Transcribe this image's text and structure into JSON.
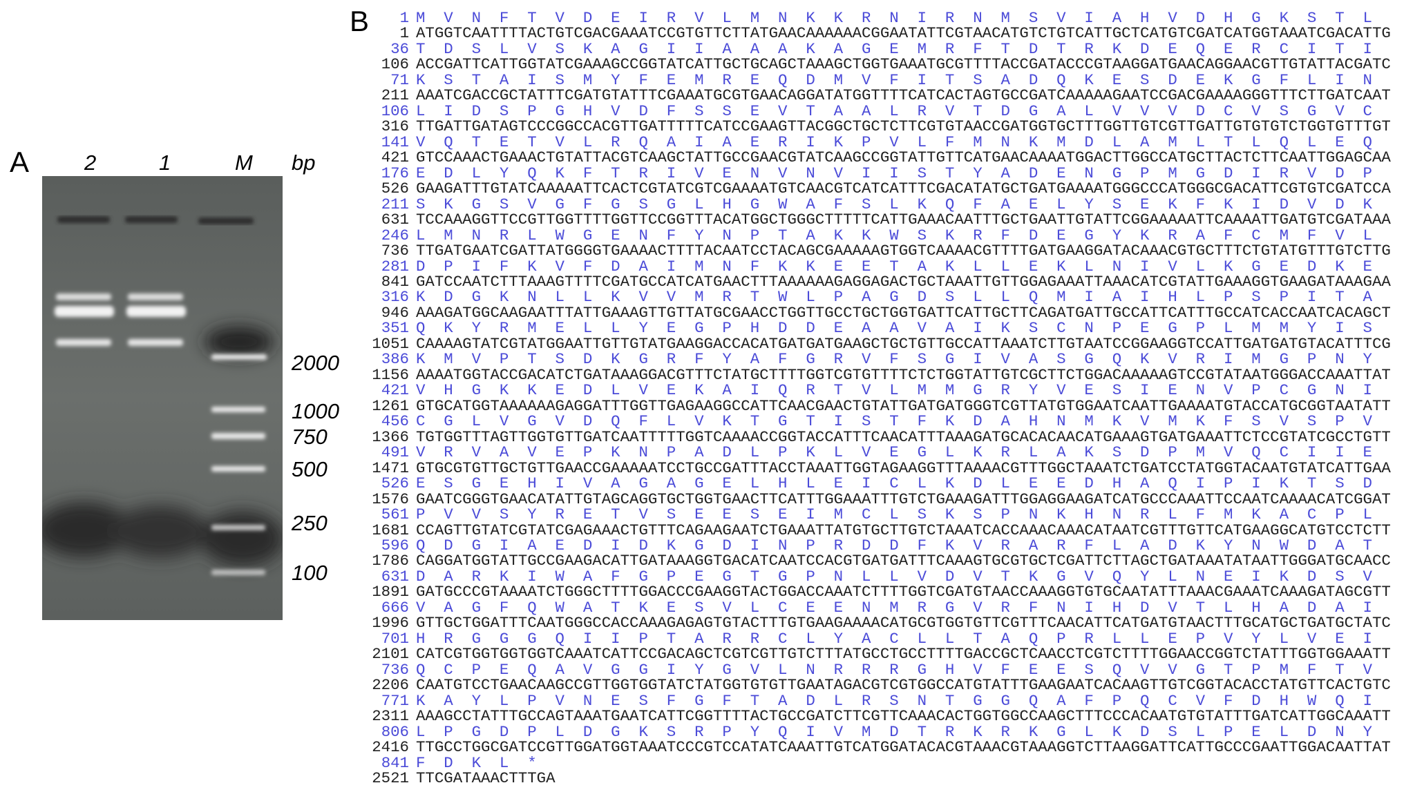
{
  "panel_a": {
    "label": "A",
    "lanes": [
      "2",
      "1",
      "M"
    ],
    "unit": "bp",
    "marker_sizes": [
      "2000",
      "1000",
      "750",
      "500",
      "250",
      "100"
    ]
  },
  "panel_b": {
    "label": "B",
    "rows": [
      {
        "aa_start": 1,
        "protein": "MVNFTVDEIRVLMNKKRNIRNMSVIAHVDHGKSTL",
        "nt_start": 1,
        "dna": "ATGGTCAATTTTACTGTCGACGAAATCCGTGTTCTTATGAACAAAAAACGGAATATTCGTAACATGTCTGTCATTGCTCATGTCGATCATGGTAAATCGACATTG"
      },
      {
        "aa_start": 36,
        "protein": "TDSLVSKAGIIAAAKAGEMRFTDTRKDEQERCITI",
        "nt_start": 106,
        "dna": "ACCGATTCATTGGTATCGAAAGCCGGTATCATTGCTGCAGCTAAAGCTGGTGAAATGCGTTTTACCGATACCCGTAAGGATGAACAGGAACGTTGTATTACGATC"
      },
      {
        "aa_start": 71,
        "protein": "KSTAISMYFEMREQDMVFITSADQKESDEKGFLIN",
        "nt_start": 211,
        "dna": "AAATCGACCGCTATTTCGATGTATTTCGAAATGCGTGAACAGGATATGGTTTTCATCACTAGTGCCGATCAAAAAGAATCCGACGAAAAGGGTTTCTTGATCAAT"
      },
      {
        "aa_start": 106,
        "protein": "LIDSPGHVDFSSEVTAALRVTDGALVVVDCVSGVC",
        "nt_start": 316,
        "dna": "TTGATTGATAGTCCCGGCCACGTTGATTTTTCATCCGAAGTTACGGCTGCTCTTCGTGTAACCGATGGTGCTTTGGTTGTCGTTGATTGTGTGTCTGGTGTTTGT"
      },
      {
        "aa_start": 141,
        "protein": "VQTETVLRQAIAERIKPVLFMNKMDLAMLTLQLEQ",
        "nt_start": 421,
        "dna": "GTCCAAACTGAAACTGTATTACGTCAAGCTATTGCCGAACGTATCAAGCCGGTATTGTTCATGAACAAAATGGACTTGGCCATGCTTACTCTTCAATTGGAGCAA"
      },
      {
        "aa_start": 176,
        "protein": "EDLYQKFTRIVENVNVIISTYADENGPMGDIRVDP",
        "nt_start": 526,
        "dna": "GAAGATTTGTATCAAAAATTCACTCGTATCGTCGAAAATGTCAACGTCATCATTTCGACATATGCTGATGAAAATGGGCCCATGGGCGACATTCGTGTCGATCCA"
      },
      {
        "aa_start": 211,
        "protein": "SKGSVGFGSGLHGWAFSLKQFAELYSEKFKIDVDK",
        "nt_start": 631,
        "dna": "TCCAAAGGTTCCGTTGGTTTTGGTTCCGGTTTACATGGCTGGGCTTTTTCATTGAAACAATTTGCTGAATTGTATTCGGAAAAATTCAAAATTGATGTCGATAAA"
      },
      {
        "aa_start": 246,
        "protein": "LMNRLWGENFYNPTAKKWSKRFDEGYKRAFCMFVL",
        "nt_start": 736,
        "dna": "TTGATGAATCGATTATGGGGTGAAAACTTTTACAATCCTACAGCGAAAAAGTGGTCAAAACGTTTTGATGAAGGATACAAACGTGCTTTCTGTATGTTTGTCTTG"
      },
      {
        "aa_start": 281,
        "protein": "DPIFKVFDAIMNFKKEETAKLLEKLNIVLKGEDKE",
        "nt_start": 841,
        "dna": "GATCCAATCTTTAAAGTTTTCGATGCCATCATGAACTTTAAAAAAGAGGAGACTGCTAAATTGTTGGAGAAATTAAACATCGTATTGAAAGGTGAAGATAAAGAA"
      },
      {
        "aa_start": 316,
        "protein": "KDGKNLLKVVMRTWLPAGDSLLQMIAIHLPSPITA",
        "nt_start": 946,
        "dna": "AAAGATGGCAAGAATTTATTGAAAGTTGTTATGCGAACCTGGTTGCCTGCTGGTGATTCATTGCTTCAGATGATTGCCATTCATTTGCCATCACCAATCACAGCT"
      },
      {
        "aa_start": 351,
        "protein": "QKYRMELLYEGPHDDEAAVAIKSCNPEGPLMMYIS",
        "nt_start": 1051,
        "dna": "CAAAAGTATCGTATGGAATTGTTGTATGAAGGACCACATGATGATGAAGCTGCTGTTGCCATTAAATCTTGTAATCCGGAAGGTCCATTGATGATGTACATTTCG"
      },
      {
        "aa_start": 386,
        "protein": "KMVPTSDKGRFYAFGRVFSGIVASGQKVRIMGPNY",
        "nt_start": 1156,
        "dna": "AAAATGGTACCGACATCTGATAAAGGACGTTTCTATGCTTTTGGTCGTGTTTTCTCTGGTATTGTCGCTTCTGGACAAAAAGTCCGTATAATGGGACCAAATTAT"
      },
      {
        "aa_start": 421,
        "protein": "VHGKKEDLVEKAIQRTVLMMGRYVESIENVPCGNI",
        "nt_start": 1261,
        "dna": "GTGCATGGTAAAAAAGAGGATTTGGTTGAGAAGGCCATTCAACGAACTGTATTGATGATGGGTCGTTATGTGGAATCAATTGAAAATGTACCATGCGGTAATATT"
      },
      {
        "aa_start": 456,
        "protein": "CGLVGVDQFLVKTGTISTFKDAHNMKVMKFSVSPV",
        "nt_start": 1366,
        "dna": "TGTGGTTTAGTTGGTGTTGATCAATTTTTGGTCAAAACCGGTACCATTTCAACATTTAAAGATGCACACAACATGAAAGTGATGAAATTCTCCGTATCGCCTGTT"
      },
      {
        "aa_start": 491,
        "protein": "VRVAVEPKNPADLPKLVEGLKRLAKSDPMVQCIIE",
        "nt_start": 1471,
        "dna": "GTGCGTGTTGCTGTTGAACCGAAAAATCCTGCCGATTTACCTAAATTGGTAGAAGGTTTAAAACGTTTGGCTAAATCTGATCCTATGGTACAATGTATCATTGAA"
      },
      {
        "aa_start": 526,
        "protein": "ESGEHIVAGAGELHLEICLKDLEEDHAQIPIKTSD",
        "nt_start": 1576,
        "dna": "GAATCGGGTGAACATATTGTAGCAGGTGCTGGTGAACTTCATTTGGAAATTTGTCTGAAAGATTTGGAGGAAGATCATGCCCAAATTCCAATCAAAACATCGGAT"
      },
      {
        "aa_start": 561,
        "protein": "PVVSYRETVSEESEIMCLSKSPNKHNRLFMKACPL",
        "nt_start": 1681,
        "dna": "CCAGTTGTATCGTATCGAGAAACTGTTTCAGAAGAATCTGAAATTATGTGCTTGTCTAAATCACCAAACAAACATAATCGTTTGTTCATGAAGGCATGTCCTCTT"
      },
      {
        "aa_start": 596,
        "protein": "QDGIAEDIDKGDINPRDDFKVRARFLADKYNWDAT",
        "nt_start": 1786,
        "dna": "CAGGATGGTATTGCCGAAGACATTGATAAAGGTGACATCAATCCACGTGATGATTTCAAAGTGCGTGCTCGATTCTTAGCTGATAAATATAATTGGGATGCAACC"
      },
      {
        "aa_start": 631,
        "protein": "DARKIWAFGPEGTGPNLLVDVTKGVQYLNEIKDSV",
        "nt_start": 1891,
        "dna": "GATGCCCGTAAAATCTGGGCTTTTGGACCCGAAGGTACTGGACCAAATCTTTTGGTCGATGTAACCAAAGGTGTGCAATATTTAAACGAAATCAAAGATAGCGTT"
      },
      {
        "aa_start": 666,
        "protein": "VAGFQWATKESVLCEENMRGVRFNIHDVTLHADAI",
        "nt_start": 1996,
        "dna": "GTTGCTGGATTTCAATGGGCCACCAAAGAGAGTGTACTTTGTGAAGAAAACATGCGTGGTGTTCGTTTCAACATTCATGATGTAACTTTGCATGCTGATGCTATC"
      },
      {
        "aa_start": 701,
        "protein": "HRGGGQIIPTARRCLYACLLTAQPRLLEPVYLVEI",
        "nt_start": 2101,
        "dna": "CATCGTGGTGGTGGTCAAATCATTCCGACAGCTCGTCGTTGTCTTTATGCCTGCCTTTTGACCGCTCAACCTCGTCTTTTGGAACCGGTCTATTTGGTGGAAATT"
      },
      {
        "aa_start": 736,
        "protein": "QCPEQAVGGIYGVLNRRRGHVFEESQVVGTPMFTV",
        "nt_start": 2206,
        "dna": "CAATGTCCTGAACAAGCCGTTGGTGGTATCTATGGTGTGTTGAATAGACGTCGTGGCCATGTATTTGAAGAATCACAAGTTGTCGGTACACCTATGTTCACTGTC"
      },
      {
        "aa_start": 771,
        "protein": "KAYLPVNESFGFTADLRSNTGGQAFPQCVFDHWQI",
        "nt_start": 2311,
        "dna": "AAAGCCTATTTGCCAGTAAATGAATCATTCGGTTTTACTGCCGATCTTCGTTCAAACACTGGTGGCCAAGCTTTCCCACAATGTGTATTTGATCATTGGCAAATT"
      },
      {
        "aa_start": 806,
        "protein": "LPGDPLDGKSRPYQIVMDTRKRKGLKDSLPELDNY",
        "nt_start": 2416,
        "dna": "TTGCCTGGCGATCCGTTGGATGGTAAATCCCGTCCATATCAAATTGTCATGGATACACGTAAACGTAAAGGTCTTAAGGATTCATTGCCCGAATTGGACAATTAT"
      },
      {
        "aa_start": 841,
        "protein": "FDKL*",
        "nt_start": 2521,
        "dna": "TTCGATAAACTTTGA"
      }
    ]
  }
}
